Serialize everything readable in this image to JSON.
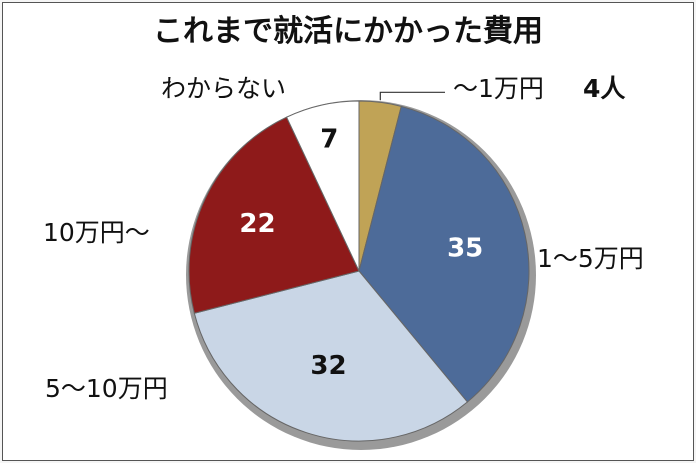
{
  "chart_data": {
    "type": "pie",
    "title": "これまで就活にかかった費用",
    "unit_suffix": "人",
    "categories": [
      "〜1万円",
      "1〜5万円",
      "5〜10万円",
      "10万円〜",
      "わからない"
    ],
    "values": [
      4,
      35,
      32,
      22,
      7
    ],
    "value_labels": [
      "4人",
      "35",
      "32",
      "22",
      "7"
    ],
    "colors": [
      "#c0a356",
      "#4d6b99",
      "#c9d6e6",
      "#8e1a1a",
      "#ffffff"
    ],
    "start_angle": "12 o'clock",
    "direction": "clockwise"
  }
}
